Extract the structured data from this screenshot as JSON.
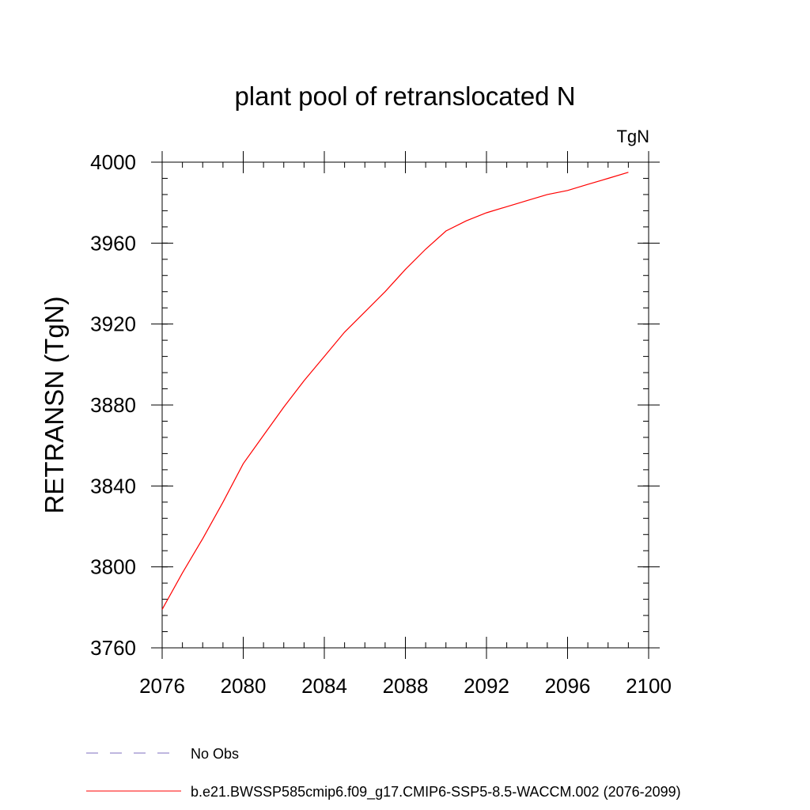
{
  "chart_data": {
    "type": "line",
    "title": "plant pool of retranslocated N",
    "units_label": "TgN",
    "ylabel": "RETRANSN  (TgN)",
    "xlabel": "",
    "xlim": [
      2076,
      2100
    ],
    "ylim": [
      3760,
      4000
    ],
    "x_ticks": [
      2076,
      2080,
      2084,
      2088,
      2092,
      2096,
      2100
    ],
    "y_ticks": [
      3760,
      3800,
      3840,
      3880,
      3920,
      3960,
      4000
    ],
    "x_minor_step": 1,
    "y_minor_step": 8,
    "grid": false,
    "legend_position": "bottom-left",
    "series": [
      {
        "name": "b.e21.BWSSP585cmip6.f09_g17.CMIP6-SSP5-8.5-WACCM.002 (2076-2099)",
        "color": "#ff0000",
        "dash": "solid",
        "x": [
          2076,
          2077,
          2078,
          2079,
          2080,
          2081,
          2082,
          2083,
          2084,
          2085,
          2086,
          2087,
          2088,
          2089,
          2090,
          2091,
          2092,
          2093,
          2094,
          2095,
          2096,
          2097,
          2098,
          2099
        ],
        "values": [
          3779,
          3797,
          3814,
          3832,
          3851,
          3865,
          3879,
          3892,
          3904,
          3916,
          3926,
          3936,
          3947,
          3957,
          3966,
          3971,
          3975,
          3978,
          3981,
          3984,
          3986,
          3989,
          3992,
          3995
        ]
      }
    ],
    "legend": [
      {
        "label": "No Obs",
        "color": "#7f6fbf",
        "dash": "dashed"
      },
      {
        "label": "b.e21.BWSSP585cmip6.f09_g17.CMIP6-SSP5-8.5-WACCM.002 (2076-2099)",
        "color": "#ff0000",
        "dash": "solid"
      }
    ]
  }
}
